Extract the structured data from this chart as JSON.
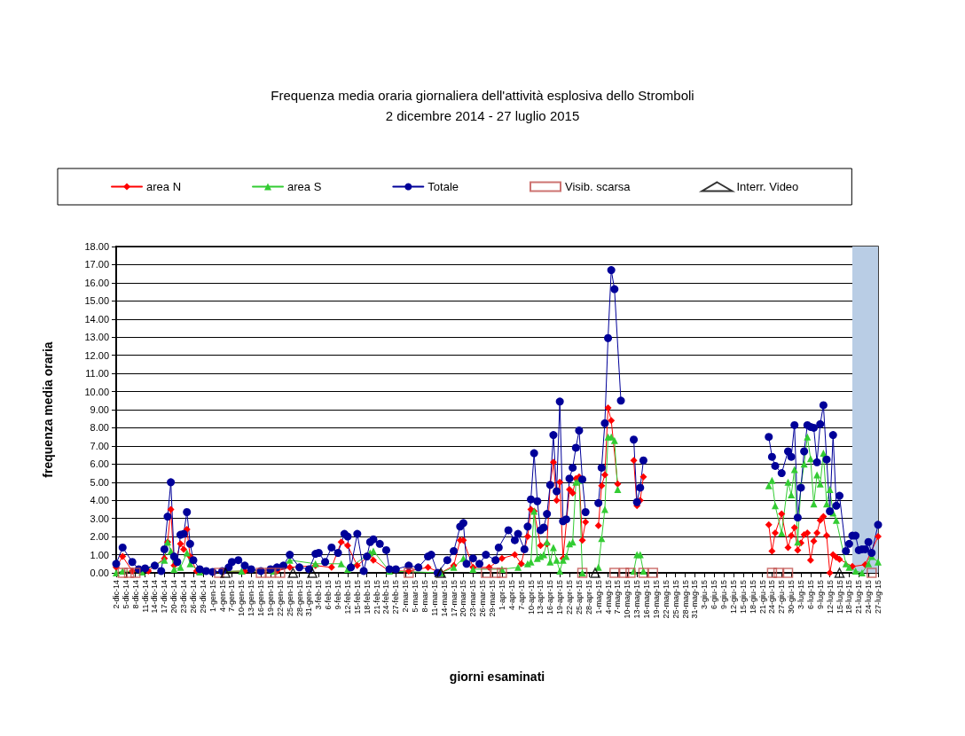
{
  "chart_data": {
    "type": "line",
    "title": "Frequenza media oraria giornaliera dell'attività esplosiva dello Stromboli",
    "subtitle": "2 dicembre 2014 - 27 luglio 2015",
    "xlabel": "giorni esaminati",
    "ylabel": "frequenza media oraria",
    "xlim": [
      "2014-12-02",
      "2015-07-27"
    ],
    "xticks": [
      {
        "value": "2014-12-02",
        "label": "2-dic-14"
      },
      {
        "value": "2014-12-05",
        "label": "5-dic-14"
      },
      {
        "value": "2014-12-08",
        "label": "8-dic-14"
      },
      {
        "value": "2014-12-11",
        "label": "11-dic-14"
      },
      {
        "value": "2014-12-14",
        "label": "14-dic-14"
      },
      {
        "value": "2014-12-17",
        "label": "17-dic-14"
      },
      {
        "value": "2014-12-20",
        "label": "20-dic-14"
      },
      {
        "value": "2014-12-23",
        "label": "23-dic-14"
      },
      {
        "value": "2014-12-26",
        "label": "26-dic-14"
      },
      {
        "value": "2014-12-29",
        "label": "29-dic-14"
      },
      {
        "value": "2015-01-01",
        "label": "1-gen-15"
      },
      {
        "value": "2015-01-04",
        "label": "4-gen-15"
      },
      {
        "value": "2015-01-07",
        "label": "7-gen-15"
      },
      {
        "value": "2015-01-10",
        "label": "10-gen-15"
      },
      {
        "value": "2015-01-13",
        "label": "13-gen-15"
      },
      {
        "value": "2015-01-16",
        "label": "16-gen-15"
      },
      {
        "value": "2015-01-19",
        "label": "19-gen-15"
      },
      {
        "value": "2015-01-22",
        "label": "22-gen-15"
      },
      {
        "value": "2015-01-25",
        "label": "25-gen-15"
      },
      {
        "value": "2015-01-28",
        "label": "28-gen-15"
      },
      {
        "value": "2015-01-31",
        "label": "31-gen-15"
      },
      {
        "value": "2015-02-03",
        "label": "3-feb-15"
      },
      {
        "value": "2015-02-06",
        "label": "6-feb-15"
      },
      {
        "value": "2015-02-09",
        "label": "9-feb-15"
      },
      {
        "value": "2015-02-12",
        "label": "12-feb-15"
      },
      {
        "value": "2015-02-15",
        "label": "15-feb-15"
      },
      {
        "value": "2015-02-18",
        "label": "18-feb-15"
      },
      {
        "value": "2015-02-21",
        "label": "21-feb-15"
      },
      {
        "value": "2015-02-24",
        "label": "24-feb-15"
      },
      {
        "value": "2015-02-27",
        "label": "27-feb-15"
      },
      {
        "value": "2015-03-02",
        "label": "2-mar-15"
      },
      {
        "value": "2015-03-05",
        "label": "5-mar-15"
      },
      {
        "value": "2015-03-08",
        "label": "8-mar-15"
      },
      {
        "value": "2015-03-11",
        "label": "11-mar-15"
      },
      {
        "value": "2015-03-14",
        "label": "14-mar-15"
      },
      {
        "value": "2015-03-17",
        "label": "17-mar-15"
      },
      {
        "value": "2015-03-20",
        "label": "20-mar-15"
      },
      {
        "value": "2015-03-23",
        "label": "23-mar-15"
      },
      {
        "value": "2015-03-26",
        "label": "26-mar-15"
      },
      {
        "value": "2015-03-29",
        "label": "29-mar-15"
      },
      {
        "value": "2015-04-01",
        "label": "1-apr-15"
      },
      {
        "value": "2015-04-04",
        "label": "4-apr-15"
      },
      {
        "value": "2015-04-07",
        "label": "7-apr-15"
      },
      {
        "value": "2015-04-10",
        "label": "10-apr-15"
      },
      {
        "value": "2015-04-13",
        "label": "13-apr-15"
      },
      {
        "value": "2015-04-16",
        "label": "16-apr-15"
      },
      {
        "value": "2015-04-19",
        "label": "19-apr-15"
      },
      {
        "value": "2015-04-22",
        "label": "22-apr-15"
      },
      {
        "value": "2015-04-25",
        "label": "25-apr-15"
      },
      {
        "value": "2015-04-28",
        "label": "28-apr-15"
      },
      {
        "value": "2015-05-01",
        "label": "1-mag-15"
      },
      {
        "value": "2015-05-04",
        "label": "4-mag-15"
      },
      {
        "value": "2015-05-07",
        "label": "7-mag-15"
      },
      {
        "value": "2015-05-10",
        "label": "10-mag-15"
      },
      {
        "value": "2015-05-13",
        "label": "13-mag-15"
      },
      {
        "value": "2015-05-16",
        "label": "16-mag-15"
      },
      {
        "value": "2015-05-19",
        "label": "19-mag-15"
      },
      {
        "value": "2015-05-22",
        "label": "22-mag-15"
      },
      {
        "value": "2015-05-25",
        "label": "25-mag-15"
      },
      {
        "value": "2015-05-28",
        "label": "28-mag-15"
      },
      {
        "value": "2015-05-31",
        "label": "31-mag-15"
      },
      {
        "value": "2015-06-03",
        "label": "3-giu-15"
      },
      {
        "value": "2015-06-06",
        "label": "6-giu-15"
      },
      {
        "value": "2015-06-09",
        "label": "9-giu-15"
      },
      {
        "value": "2015-06-12",
        "label": "12-giu-15"
      },
      {
        "value": "2015-06-15",
        "label": "15-giu-15"
      },
      {
        "value": "2015-06-18",
        "label": "18-giu-15"
      },
      {
        "value": "2015-06-21",
        "label": "21-giu-15"
      },
      {
        "value": "2015-06-24",
        "label": "24-giu-15"
      },
      {
        "value": "2015-06-27",
        "label": "27-giu-15"
      },
      {
        "value": "2015-06-30",
        "label": "30-giu-15"
      },
      {
        "value": "2015-07-03",
        "label": "3-lug-15"
      },
      {
        "value": "2015-07-06",
        "label": "6-lug-15"
      },
      {
        "value": "2015-07-09",
        "label": "9-lug-15"
      },
      {
        "value": "2015-07-12",
        "label": "12-lug-15"
      },
      {
        "value": "2015-07-15",
        "label": "15-lug-15"
      },
      {
        "value": "2015-07-18",
        "label": "18-lug-15"
      },
      {
        "value": "2015-07-21",
        "label": "21-lug-15"
      },
      {
        "value": "2015-07-24",
        "label": "24-lug-15"
      },
      {
        "value": "2015-07-27",
        "label": "27-lug-15"
      }
    ],
    "ylim": [
      0,
      18
    ],
    "yticks": [
      {
        "value": 0,
        "label": "0.00"
      },
      {
        "value": 1,
        "label": "1.00"
      },
      {
        "value": 2,
        "label": "2.00"
      },
      {
        "value": 3,
        "label": "3.00"
      },
      {
        "value": 4,
        "label": "4.00"
      },
      {
        "value": 5,
        "label": "5.00"
      },
      {
        "value": 6,
        "label": "6.00"
      },
      {
        "value": 7,
        "label": "7.00"
      },
      {
        "value": 8,
        "label": "8.00"
      },
      {
        "value": 9,
        "label": "9.00"
      },
      {
        "value": 10,
        "label": "10.00"
      },
      {
        "value": 11,
        "label": "11.00"
      },
      {
        "value": 12,
        "label": "12.00"
      },
      {
        "value": 13,
        "label": "13.00"
      },
      {
        "value": 14,
        "label": "14.00"
      },
      {
        "value": 15,
        "label": "15.00"
      },
      {
        "value": 16,
        "label": "16.00"
      },
      {
        "value": 17,
        "label": "17.00"
      },
      {
        "value": 18,
        "label": "18.00"
      }
    ],
    "grid": "y",
    "legend": "top",
    "bands": [
      {
        "axis": "x",
        "from": "2015-07-19",
        "to": "2015-07-27",
        "color": "#b9cde5"
      }
    ],
    "series": [
      {
        "name": "area N",
        "marker": "diamond",
        "color": "#ff0000",
        "x": [
          "2014-12-02",
          "2014-12-04",
          "2014-12-07",
          "2014-12-12",
          "2014-12-17",
          "2014-12-18",
          "2014-12-19",
          "2014-12-20",
          "2014-12-22",
          "2014-12-23",
          "2014-12-24",
          "2014-12-25",
          "2014-12-27",
          "2015-01-01",
          "2015-01-11",
          "2015-01-21",
          "2015-01-25",
          "2015-02-02",
          "2015-02-07",
          "2015-02-10",
          "2015-02-12",
          "2015-02-15",
          "2015-02-19",
          "2015-02-20",
          "2015-02-25",
          "2015-03-03",
          "2015-03-09",
          "2015-03-13",
          "2015-03-17",
          "2015-03-19",
          "2015-03-20",
          "2015-03-23",
          "2015-03-28",
          "2015-04-01",
          "2015-04-05",
          "2015-04-07",
          "2015-04-09",
          "2015-04-10",
          "2015-04-11",
          "2015-04-13",
          "2015-04-15",
          "2015-04-16",
          "2015-04-17",
          "2015-04-18",
          "2015-04-19",
          "2015-04-20",
          "2015-04-22",
          "2015-04-23",
          "2015-04-24",
          "2015-04-25",
          "2015-04-26",
          "2015-04-27",
          "2015-04-29",
          "2015-05-01",
          "2015-05-02",
          "2015-05-03",
          "2015-05-04",
          "2015-05-05",
          "2015-05-07",
          "2015-05-10",
          "2015-05-12",
          "2015-05-13",
          "2015-05-14",
          "2015-05-15",
          "2015-06-01",
          "2015-06-23",
          "2015-06-24",
          "2015-06-25",
          "2015-06-27",
          "2015-06-29",
          "2015-06-30",
          "2015-07-01",
          "2015-07-02",
          "2015-07-03",
          "2015-07-04",
          "2015-07-05",
          "2015-07-06",
          "2015-07-07",
          "2015-07-08",
          "2015-07-09",
          "2015-07-10",
          "2015-07-11",
          "2015-07-12",
          "2015-07-13",
          "2015-07-14",
          "2015-07-15",
          "2015-07-19",
          "2015-07-23",
          "2015-07-27"
        ],
        "values": [
          0.3,
          0.9,
          0.1,
          0.1,
          0.8,
          1.7,
          3.5,
          0.4,
          1.6,
          1.3,
          2.4,
          0.9,
          0.1,
          0.05,
          0.1,
          0.1,
          0.3,
          0.4,
          0.3,
          1.7,
          1.5,
          0.4,
          1.0,
          0.7,
          0.1,
          0.1,
          0.3,
          0,
          0.4,
          1.8,
          1.8,
          0.3,
          0.3,
          0.8,
          1.0,
          0.5,
          2.0,
          3.5,
          3.4,
          1.5,
          1.6,
          4.9,
          6.1,
          4.0,
          5.0,
          0.8,
          4.6,
          4.4,
          5.2,
          5.3,
          1.8,
          2.8,
          null,
          2.6,
          4.8,
          5.4,
          9.1,
          8.4,
          4.9,
          null,
          6.2,
          3.7,
          4.0,
          5.3,
          null,
          2.65,
          1.2,
          2.2,
          3.25,
          1.4,
          2.05,
          2.5,
          1.25,
          1.65,
          2.1,
          2.2,
          0.7,
          1.75,
          2.2,
          2.9,
          3.1,
          2.05,
          0,
          1.0,
          0.85,
          0.75,
          0.35,
          0.45,
          2.0
        ]
      },
      {
        "name": "area S",
        "marker": "triangle",
        "color": "#33cc33",
        "x": [
          "2014-12-02",
          "2014-12-04",
          "2014-12-10",
          "2014-12-17",
          "2014-12-18",
          "2014-12-19",
          "2014-12-20",
          "2014-12-22",
          "2014-12-24",
          "2014-12-25",
          "2014-12-28",
          "2015-01-10",
          "2015-01-20",
          "2015-01-25",
          "2015-02-02",
          "2015-02-10",
          "2015-02-12",
          "2015-02-19",
          "2015-02-20",
          "2015-02-25",
          "2015-03-13",
          "2015-03-17",
          "2015-03-20",
          "2015-03-23",
          "2015-04-01",
          "2015-04-06",
          "2015-04-09",
          "2015-04-10",
          "2015-04-11",
          "2015-04-12",
          "2015-04-13",
          "2015-04-14",
          "2015-04-15",
          "2015-04-16",
          "2015-04-17",
          "2015-04-18",
          "2015-04-19",
          "2015-04-20",
          "2015-04-21",
          "2015-04-22",
          "2015-04-23",
          "2015-04-24",
          "2015-04-25",
          "2015-04-26",
          "2015-04-29",
          "2015-05-01",
          "2015-05-02",
          "2015-05-03",
          "2015-05-04",
          "2015-05-05",
          "2015-05-06",
          "2015-05-07",
          "2015-05-10",
          "2015-05-12",
          "2015-05-13",
          "2015-05-14",
          "2015-05-15",
          "2015-06-01",
          "2015-06-23",
          "2015-06-24",
          "2015-06-25",
          "2015-06-27",
          "2015-06-29",
          "2015-06-30",
          "2015-07-01",
          "2015-07-02",
          "2015-07-03",
          "2015-07-04",
          "2015-07-05",
          "2015-07-06",
          "2015-07-07",
          "2015-07-08",
          "2015-07-09",
          "2015-07-10",
          "2015-07-11",
          "2015-07-12",
          "2015-07-13",
          "2015-07-14",
          "2015-07-17",
          "2015-07-18",
          "2015-07-20",
          "2015-07-22",
          "2015-07-24",
          "2015-07-25",
          "2015-07-27"
        ],
        "values": [
          0,
          0.1,
          0.05,
          0.7,
          1.7,
          1.2,
          0.2,
          0.3,
          1.1,
          0.5,
          0.05,
          0.1,
          0.1,
          0.7,
          0.5,
          0.5,
          0.2,
          1.1,
          1.2,
          0.1,
          0,
          0.3,
          0.8,
          0.2,
          0.2,
          0.3,
          0.5,
          0.6,
          3.4,
          0.8,
          0.9,
          1.0,
          1.7,
          0.6,
          1.4,
          0.7,
          0.1,
          0.7,
          0.9,
          1.6,
          1.7,
          5.0,
          5.1,
          0,
          null,
          0.3,
          1.9,
          3.5,
          7.5,
          7.5,
          7.3,
          4.6,
          null,
          0.1,
          1.0,
          1.0,
          0.1,
          null,
          4.8,
          5.1,
          3.7,
          2.2,
          5.0,
          4.3,
          5.7,
          1.7,
          4.8,
          6.0,
          7.5,
          6.3,
          3.8,
          5.4,
          4.9,
          6.6,
          3.8,
          4.6,
          3.3,
          2.9,
          0.5,
          0.3,
          0.1,
          0,
          0.5,
          0.9,
          0.6
        ]
      },
      {
        "name": "Totale",
        "marker": "circle",
        "color": "#000099",
        "x": [
          "2014-12-02",
          "2014-12-04",
          "2014-12-07",
          "2014-12-09",
          "2014-12-11",
          "2014-12-14",
          "2014-12-16",
          "2014-12-17",
          "2014-12-18",
          "2014-12-19",
          "2014-12-20",
          "2014-12-21",
          "2014-12-22",
          "2014-12-23",
          "2014-12-24",
          "2014-12-25",
          "2014-12-26",
          "2014-12-28",
          "2014-12-30",
          "2015-01-01",
          "2015-01-04",
          "2015-01-06",
          "2015-01-07",
          "2015-01-09",
          "2015-01-11",
          "2015-01-13",
          "2015-01-16",
          "2015-01-19",
          "2015-01-21",
          "2015-01-23",
          "2015-01-25",
          "2015-01-28",
          "2015-01-31",
          "2015-02-02",
          "2015-02-03",
          "2015-02-05",
          "2015-02-07",
          "2015-02-09",
          "2015-02-11",
          "2015-02-12",
          "2015-02-13",
          "2015-02-15",
          "2015-02-17",
          "2015-02-18",
          "2015-02-19",
          "2015-02-20",
          "2015-02-22",
          "2015-02-24",
          "2015-02-25",
          "2015-02-27",
          "2015-03-03",
          "2015-03-06",
          "2015-03-09",
          "2015-03-10",
          "2015-03-12",
          "2015-03-15",
          "2015-03-17",
          "2015-03-19",
          "2015-03-20",
          "2015-03-21",
          "2015-03-23",
          "2015-03-25",
          "2015-03-27",
          "2015-03-30",
          "2015-03-31",
          "2015-04-03",
          "2015-04-05",
          "2015-04-06",
          "2015-04-08",
          "2015-04-09",
          "2015-04-10",
          "2015-04-11",
          "2015-04-12",
          "2015-04-13",
          "2015-04-14",
          "2015-04-15",
          "2015-04-16",
          "2015-04-17",
          "2015-04-18",
          "2015-04-19",
          "2015-04-20",
          "2015-04-21",
          "2015-04-22",
          "2015-04-23",
          "2015-04-24",
          "2015-04-25",
          "2015-04-26",
          "2015-04-27",
          "2015-04-29",
          "2015-05-01",
          "2015-05-02",
          "2015-05-03",
          "2015-05-04",
          "2015-05-05",
          "2015-05-06",
          "2015-05-08",
          "2015-05-10",
          "2015-05-12",
          "2015-05-13",
          "2015-05-14",
          "2015-05-15",
          "2015-06-01",
          "2015-06-23",
          "2015-06-24",
          "2015-06-25",
          "2015-06-27",
          "2015-06-29",
          "2015-06-30",
          "2015-07-01",
          "2015-07-02",
          "2015-07-03",
          "2015-07-04",
          "2015-07-05",
          "2015-07-06",
          "2015-07-07",
          "2015-07-08",
          "2015-07-09",
          "2015-07-10",
          "2015-07-11",
          "2015-07-12",
          "2015-07-13",
          "2015-07-14",
          "2015-07-15",
          "2015-07-17",
          "2015-07-18",
          "2015-07-19",
          "2015-07-20",
          "2015-07-21",
          "2015-07-22",
          "2015-07-23",
          "2015-07-24",
          "2015-07-25",
          "2015-07-27"
        ],
        "values": [
          0.5,
          1.4,
          0.6,
          0.2,
          0.25,
          0.4,
          0.1,
          1.3,
          3.1,
          5.0,
          0.9,
          0.6,
          2.1,
          2.15,
          3.35,
          1.6,
          0.7,
          0.2,
          0.1,
          0.05,
          0.1,
          0.3,
          0.6,
          0.7,
          0.4,
          0.2,
          0.1,
          0.2,
          0.3,
          0.4,
          1.0,
          0.3,
          0.2,
          1.05,
          1.1,
          0.6,
          1.4,
          1.1,
          2.15,
          2.0,
          0.3,
          2.15,
          0.1,
          0.9,
          1.7,
          1.85,
          1.6,
          1.25,
          0.2,
          0.2,
          0.4,
          0.3,
          0.9,
          1.0,
          0,
          0.7,
          1.2,
          2.55,
          2.75,
          0.5,
          0.8,
          0.5,
          1.0,
          0.7,
          1.4,
          2.35,
          1.8,
          2.15,
          1.3,
          2.55,
          4.05,
          6.6,
          3.95,
          2.35,
          2.5,
          3.25,
          4.85,
          7.6,
          4.5,
          9.45,
          2.85,
          2.95,
          5.2,
          5.8,
          6.9,
          7.85,
          5.15,
          3.35,
          null,
          3.85,
          5.8,
          8.25,
          12.95,
          16.7,
          15.65,
          9.5,
          null,
          7.35,
          3.9,
          4.7,
          6.2,
          null,
          7.5,
          6.4,
          5.9,
          5.5,
          6.7,
          6.4,
          8.15,
          3.05,
          4.7,
          6.7,
          8.15,
          8.05,
          8.0,
          6.1,
          8.2,
          9.25,
          6.25,
          3.4,
          7.6,
          3.7,
          4.25,
          1.2,
          1.6,
          2.05,
          2.05,
          1.25,
          1.3,
          1.3,
          1.7,
          1.1,
          2.65
        ]
      },
      {
        "name": "Visib. scarsa",
        "type": "scatter",
        "marker": "square",
        "color": "#c0504d",
        "x": [
          "2014-12-04",
          "2014-12-06",
          "2014-12-08",
          "2015-01-03",
          "2015-01-16",
          "2015-01-19",
          "2015-01-22",
          "2015-03-03",
          "2015-03-27",
          "2015-03-30",
          "2015-04-01",
          "2015-04-26",
          "2015-05-06",
          "2015-05-09",
          "2015-05-11",
          "2015-05-15",
          "2015-05-18",
          "2015-06-24",
          "2015-06-26",
          "2015-06-29",
          "2015-07-25"
        ],
        "values": [
          0,
          0,
          0,
          0,
          0,
          0,
          0,
          0,
          0,
          0,
          0,
          0,
          0,
          0,
          0,
          0,
          0,
          0,
          0,
          0,
          0
        ]
      },
      {
        "name": "Interr. Video",
        "type": "scatter",
        "marker": "triangle",
        "color": "#000000",
        "x": [
          "2015-01-05",
          "2015-01-26",
          "2015-02-01",
          "2015-03-13",
          "2015-04-30",
          "2015-07-15"
        ],
        "values": [
          0,
          0,
          0,
          0,
          0,
          0
        ]
      }
    ]
  }
}
